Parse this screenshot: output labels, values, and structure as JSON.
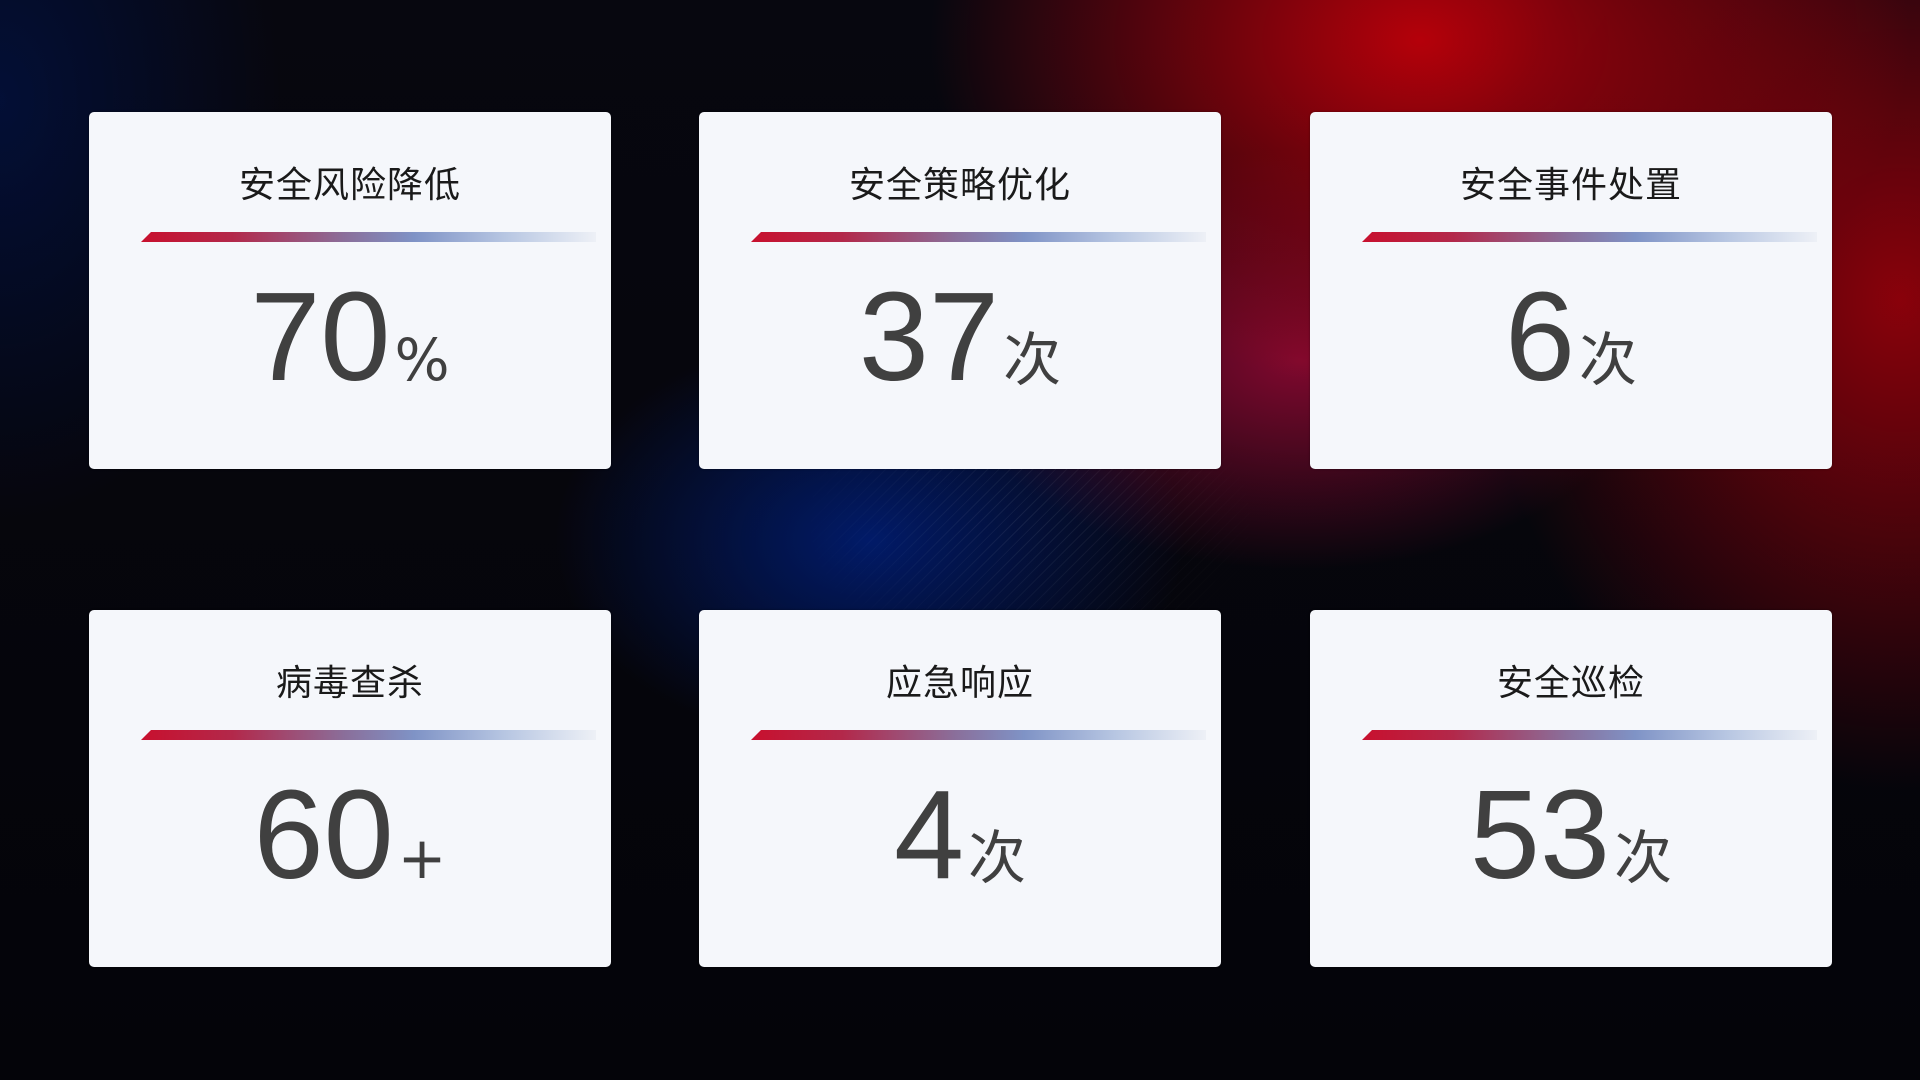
{
  "cards": [
    {
      "title": "安全风险降低",
      "value": "70",
      "unit": "%"
    },
    {
      "title": "安全策略优化",
      "value": "37",
      "unit": "次"
    },
    {
      "title": "安全事件处置",
      "value": "6",
      "unit": "次"
    },
    {
      "title": "病毒查杀",
      "value": "60",
      "unit": "+"
    },
    {
      "title": "应急响应",
      "value": "4",
      "unit": "次"
    },
    {
      "title": "安全巡检",
      "value": "53",
      "unit": "次"
    }
  ],
  "colors": {
    "accent_red": "#c8102e",
    "accent_blue": "#7f93c6",
    "card_bg": "#f5f7fb",
    "value_text": "#404040"
  }
}
